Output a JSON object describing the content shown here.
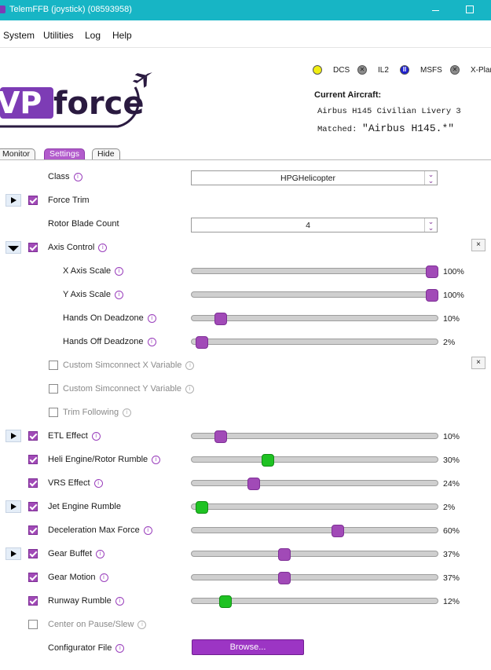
{
  "window": {
    "title": "TelemFFB (joystick) (08593958)"
  },
  "menu": [
    "System",
    "Utilities",
    "Log",
    "Help"
  ],
  "logo": {
    "text_left": "VP",
    "text_right": "force"
  },
  "sims": [
    {
      "label": "DCS",
      "glyph": "",
      "color": "#f1ee12"
    },
    {
      "label": "IL2",
      "glyph": "✕",
      "color": "#8c8c8c"
    },
    {
      "label": "MSFS",
      "glyph": "II",
      "color": "#1d1fd0"
    },
    {
      "label": "X-Plane",
      "glyph": "✕",
      "color": "#8c8c8c"
    }
  ],
  "aircraft": {
    "heading": "Current Aircraft:",
    "name": "Airbus H145 Civilian Livery 3",
    "matched_label": "Matched:",
    "matched_value": "\"Airbus H145.*\""
  },
  "tabs": [
    "Monitor",
    "Settings",
    "Hide"
  ],
  "active_tab": "Settings",
  "colors": {
    "accent": "#a14ab7",
    "green_handle": "#1fc223",
    "titlebar": "#17b5c5"
  },
  "settings": {
    "class": {
      "label": "Class",
      "value": "HPGHelicopter"
    },
    "force_trim": {
      "label": "Force Trim"
    },
    "rotor_blade": {
      "label": "Rotor Blade Count",
      "value": "4"
    },
    "axis_control": {
      "label": "Axis Control"
    },
    "x_axis": {
      "label": "X Axis Scale",
      "value": "100%",
      "level": 1.0
    },
    "y_axis": {
      "label": "Y Axis Scale",
      "value": "100%",
      "level": 1.0
    },
    "hands_on": {
      "label": "Hands On Deadzone",
      "value": "10%",
      "level": 0.1
    },
    "hands_off": {
      "label": "Hands Off Deadzone",
      "value": "2%",
      "level": 0.02
    },
    "custom_x": {
      "label": "Custom Simconnect X Variable"
    },
    "custom_y": {
      "label": "Custom Simconnect Y Variable"
    },
    "trim_follow": {
      "label": "Trim Following"
    },
    "etl": {
      "label": "ETL Effect",
      "value": "10%",
      "level": 0.1
    },
    "heli_engine": {
      "label": "Heli Engine/Rotor Rumble",
      "value": "30%",
      "level": 0.3
    },
    "vrs": {
      "label": "VRS Effect",
      "value": "24%",
      "level": 0.24
    },
    "jet_engine": {
      "label": "Jet Engine Rumble",
      "value": "2%",
      "level": 0.02
    },
    "decel": {
      "label": "Deceleration Max Force",
      "value": "60%",
      "level": 0.6
    },
    "gear_buffet": {
      "label": "Gear Buffet",
      "value": "37%",
      "level": 0.37
    },
    "gear_motion": {
      "label": "Gear Motion",
      "value": "37%",
      "level": 0.37
    },
    "runway": {
      "label": "Runway Rumble",
      "value": "12%",
      "level": 0.12
    },
    "center_pause": {
      "label": "Center on Pause/Slew"
    },
    "configurator": {
      "label": "Configurator File",
      "button": "Browse..."
    }
  },
  "reset_glyph": "×"
}
